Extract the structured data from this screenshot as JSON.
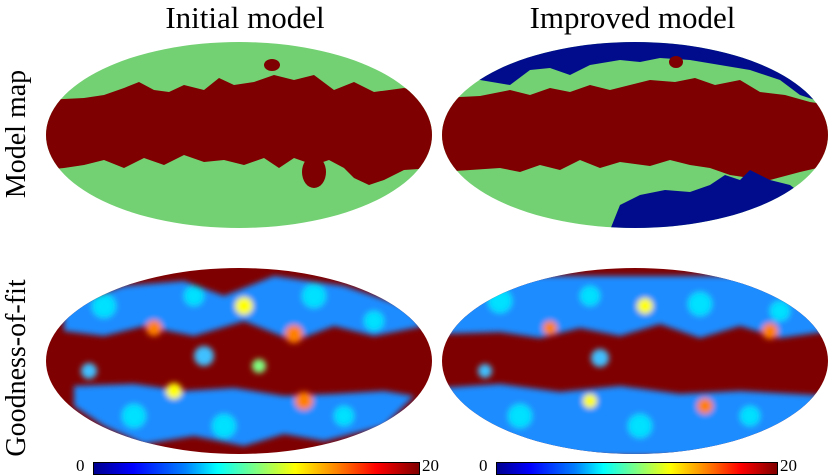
{
  "columns": {
    "initial_title": "Initial model",
    "improved_title": "Improved model"
  },
  "rows": {
    "model_label": "Model map",
    "gof_label": "Goodness-of-fit"
  },
  "colorbars": [
    {
      "min_label": "0",
      "max_label": "20"
    },
    {
      "min_label": "0",
      "max_label": "20"
    }
  ],
  "colors": {
    "region_green": "#73d073",
    "region_darkred": "#7f0000",
    "region_navy": "#000c8c",
    "colormap": "jet"
  }
}
